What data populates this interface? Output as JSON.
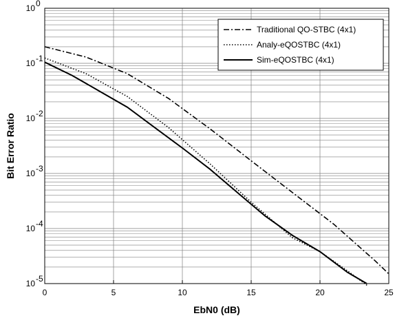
{
  "chart_data": {
    "type": "line",
    "xlabel": "EbN0 (dB)",
    "ylabel": "Bit Error Ratio",
    "xlim": [
      0,
      25
    ],
    "ylim": [
      1e-05,
      1
    ],
    "yscale": "log",
    "grid": true,
    "legend_position": "top-right",
    "x_ticks": [
      "0",
      "5",
      "10",
      "15",
      "20",
      "25"
    ],
    "y_ticks": [
      {
        "base": "10",
        "exp": "0",
        "value": 1
      },
      {
        "base": "10",
        "exp": "-1",
        "value": 0.1
      },
      {
        "base": "10",
        "exp": "-2",
        "value": 0.01
      },
      {
        "base": "10",
        "exp": "-3",
        "value": 0.001
      },
      {
        "base": "10",
        "exp": "-4",
        "value": 0.0001
      },
      {
        "base": "10",
        "exp": "-5",
        "value": 1e-05
      }
    ],
    "series": [
      {
        "name": "Traditional QO-STBC (4x1)",
        "style": "dashdot",
        "color": "#000000",
        "x": [
          0,
          3,
          6,
          9,
          12,
          15,
          18,
          21,
          24,
          25
        ],
        "y": [
          0.2,
          0.13,
          0.065,
          0.023,
          0.0065,
          0.0017,
          0.00045,
          0.00012,
          2.6e-05,
          1.5e-05
        ]
      },
      {
        "name": "Analy-eQOSTBC (4x1)",
        "style": "dotted",
        "color": "#000000",
        "x": [
          0,
          3,
          6,
          9,
          12,
          15,
          18,
          20,
          22,
          23.5
        ],
        "y": [
          0.125,
          0.065,
          0.025,
          0.0068,
          0.0015,
          0.0003,
          6.8e-05,
          3.8e-05,
          1.7e-05,
          9e-06
        ]
      },
      {
        "name": "Sim-eQOSTBC (4x1)",
        "style": "solid",
        "color": "#000000",
        "x": [
          0,
          2,
          4,
          6,
          8,
          10,
          12,
          14,
          16,
          18,
          20,
          22,
          23.4
        ],
        "y": [
          0.105,
          0.06,
          0.031,
          0.016,
          0.0068,
          0.0029,
          0.0012,
          0.00045,
          0.00017,
          7.5e-05,
          3.8e-05,
          1.6e-05,
          1e-05
        ]
      }
    ]
  }
}
